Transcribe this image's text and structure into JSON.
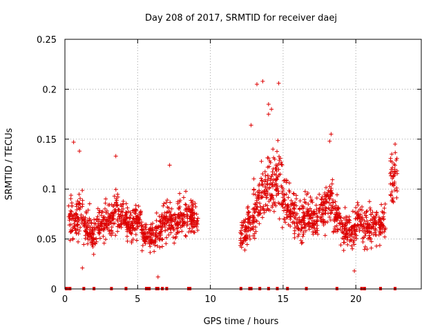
{
  "chart_data": {
    "type": "scatter",
    "title": "Day 208 of 2017, SRMTID for receiver daej",
    "xlabel": "GPS time / hours",
    "ylabel": "SRMTID / TECUs",
    "xlim": [
      0,
      24.5
    ],
    "ylim": [
      0,
      0.25
    ],
    "xticks": [
      0,
      5,
      10,
      15,
      20
    ],
    "xtick_labels": [
      "0",
      "5",
      "10",
      "15",
      "20"
    ],
    "yticks": [
      0,
      0.05,
      0.1,
      0.15,
      0.2,
      0.25
    ],
    "ytick_labels": [
      "0",
      "0.05",
      "0.1",
      "0.15",
      "0.2",
      "0.25"
    ],
    "grid": true,
    "marker": "plus",
    "colors": {
      "series": "#dd0000",
      "grid": "#a0a0a0",
      "axis": "#000000"
    },
    "series": [
      {
        "name": "SRMTID",
        "clusters": [
          {
            "t": 0.5,
            "y": 0.068,
            "s": 0.018
          },
          {
            "t": 1.0,
            "y": 0.075,
            "s": 0.02
          },
          {
            "t": 1.5,
            "y": 0.062,
            "s": 0.015
          },
          {
            "t": 2.0,
            "y": 0.055,
            "s": 0.014
          },
          {
            "t": 2.5,
            "y": 0.065,
            "s": 0.014
          },
          {
            "t": 3.0,
            "y": 0.068,
            "s": 0.014
          },
          {
            "t": 3.5,
            "y": 0.075,
            "s": 0.016
          },
          {
            "t": 4.0,
            "y": 0.07,
            "s": 0.014
          },
          {
            "t": 4.5,
            "y": 0.065,
            "s": 0.014
          },
          {
            "t": 5.0,
            "y": 0.068,
            "s": 0.014
          },
          {
            "t": 5.5,
            "y": 0.055,
            "s": 0.012
          },
          {
            "t": 6.0,
            "y": 0.052,
            "s": 0.012
          },
          {
            "t": 6.5,
            "y": 0.06,
            "s": 0.014
          },
          {
            "t": 7.0,
            "y": 0.07,
            "s": 0.016
          },
          {
            "t": 7.5,
            "y": 0.065,
            "s": 0.014
          },
          {
            "t": 8.0,
            "y": 0.07,
            "s": 0.015
          },
          {
            "t": 8.5,
            "y": 0.075,
            "s": 0.015
          },
          {
            "t": 8.9,
            "y": 0.07,
            "s": 0.014
          },
          {
            "t": 12.3,
            "y": 0.055,
            "s": 0.014
          },
          {
            "t": 12.8,
            "y": 0.065,
            "s": 0.016
          },
          {
            "t": 13.2,
            "y": 0.08,
            "s": 0.02
          },
          {
            "t": 13.7,
            "y": 0.095,
            "s": 0.025
          },
          {
            "t": 14.2,
            "y": 0.105,
            "s": 0.028
          },
          {
            "t": 14.7,
            "y": 0.11,
            "s": 0.03
          },
          {
            "t": 15.2,
            "y": 0.085,
            "s": 0.02
          },
          {
            "t": 15.7,
            "y": 0.075,
            "s": 0.018
          },
          {
            "t": 16.2,
            "y": 0.07,
            "s": 0.016
          },
          {
            "t": 16.7,
            "y": 0.075,
            "s": 0.018
          },
          {
            "t": 17.2,
            "y": 0.07,
            "s": 0.016
          },
          {
            "t": 17.7,
            "y": 0.08,
            "s": 0.018
          },
          {
            "t": 18.2,
            "y": 0.09,
            "s": 0.02
          },
          {
            "t": 18.7,
            "y": 0.07,
            "s": 0.016
          },
          {
            "t": 19.2,
            "y": 0.06,
            "s": 0.014
          },
          {
            "t": 19.7,
            "y": 0.06,
            "s": 0.016
          },
          {
            "t": 20.2,
            "y": 0.07,
            "s": 0.016
          },
          {
            "t": 20.7,
            "y": 0.06,
            "s": 0.016
          },
          {
            "t": 21.2,
            "y": 0.065,
            "s": 0.016
          },
          {
            "t": 21.8,
            "y": 0.065,
            "s": 0.016
          },
          {
            "t": 22.6,
            "y": 0.115,
            "s": 0.022
          }
        ],
        "outliers": [
          {
            "x": 0.6,
            "y": 0.147
          },
          {
            "x": 1.0,
            "y": 0.138
          },
          {
            "x": 3.5,
            "y": 0.133
          },
          {
            "x": 7.2,
            "y": 0.124
          },
          {
            "x": 6.4,
            "y": 0.012
          },
          {
            "x": 1.2,
            "y": 0.021
          },
          {
            "x": 12.8,
            "y": 0.164
          },
          {
            "x": 13.2,
            "y": 0.205
          },
          {
            "x": 13.6,
            "y": 0.208
          },
          {
            "x": 14.7,
            "y": 0.206
          },
          {
            "x": 14.0,
            "y": 0.185
          },
          {
            "x": 14.2,
            "y": 0.18
          },
          {
            "x": 18.3,
            "y": 0.155
          },
          {
            "x": 18.2,
            "y": 0.148
          },
          {
            "x": 19.9,
            "y": 0.018
          },
          {
            "x": 22.7,
            "y": 0.145
          },
          {
            "x": 14.3,
            "y": 0.14
          },
          {
            "x": 14.0,
            "y": 0.175
          }
        ],
        "zero_points": [
          0.1,
          0.3,
          0.35,
          1.3,
          2.0,
          3.2,
          4.2,
          5.6,
          5.7,
          5.8,
          6.3,
          6.4,
          6.7,
          7.0,
          8.5,
          8.6,
          12.1,
          12.7,
          12.8,
          13.4,
          14.0,
          14.6,
          15.3,
          16.6,
          18.7,
          20.4,
          20.6,
          21.7,
          22.7
        ]
      }
    ]
  }
}
